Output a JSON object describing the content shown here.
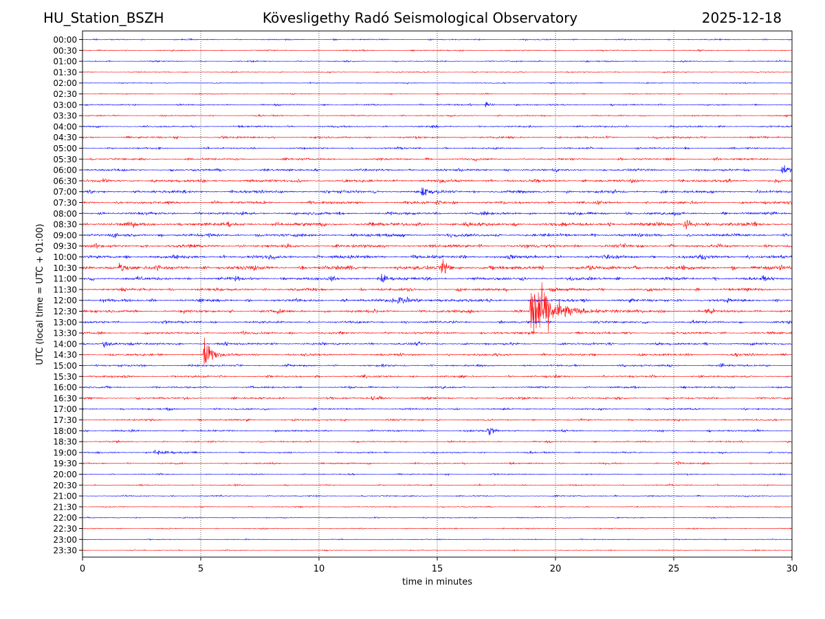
{
  "header": {
    "station": "HU_Station_BSZH",
    "observatory": "Kövesligethy Radó Seismological Observatory",
    "date": "2025-12-18"
  },
  "chart_data": {
    "type": "line",
    "title": "Kövesligethy Radó Seismological Observatory",
    "xlabel": "time in minutes",
    "ylabel": "UTC (local time = UTC + 01:00)",
    "xlim": [
      0,
      30
    ],
    "x_ticks": [
      "0",
      "5",
      "10",
      "15",
      "20",
      "25",
      "30"
    ],
    "grid": "vertical dotted lines at x ticks",
    "colors": {
      "even": "#0000ff",
      "odd": "#ff0000"
    },
    "rows": [
      "00:00",
      "00:30",
      "01:00",
      "01:30",
      "02:00",
      "02:30",
      "03:00",
      "03:30",
      "04:00",
      "04:30",
      "05:00",
      "05:30",
      "06:00",
      "06:30",
      "07:00",
      "07:30",
      "08:00",
      "08:30",
      "09:00",
      "09:30",
      "10:00",
      "10:30",
      "11:00",
      "11:30",
      "12:00",
      "12:30",
      "13:00",
      "13:30",
      "14:00",
      "14:30",
      "15:00",
      "15:30",
      "16:00",
      "16:30",
      "17:00",
      "17:30",
      "18:00",
      "18:30",
      "19:00",
      "19:30",
      "20:00",
      "20:30",
      "21:00",
      "21:30",
      "22:00",
      "22:30",
      "23:00",
      "23:30"
    ],
    "noise_level": [
      0.4,
      0.4,
      0.4,
      0.35,
      0.35,
      0.35,
      0.5,
      0.45,
      0.6,
      0.7,
      0.6,
      0.7,
      0.8,
      1.0,
      1.0,
      0.9,
      1.0,
      1.3,
      1.1,
      1.1,
      1.2,
      1.4,
      1.1,
      1.0,
      1.0,
      1.0,
      0.8,
      0.8,
      0.8,
      0.8,
      0.7,
      0.7,
      0.6,
      0.7,
      0.6,
      0.6,
      0.6,
      0.5,
      0.5,
      0.5,
      0.4,
      0.4,
      0.4,
      0.35,
      0.35,
      0.35,
      0.3,
      0.3
    ],
    "events": [
      {
        "row": "03:00",
        "t": 17.0,
        "amp": 7,
        "dur": 0.4
      },
      {
        "row": "06:00",
        "t": 29.5,
        "amp": 5,
        "dur": 1.0
      },
      {
        "row": "07:00",
        "t": 14.3,
        "amp": 6,
        "dur": 0.6
      },
      {
        "row": "07:30",
        "t": 14.9,
        "amp": 5,
        "dur": 0.4
      },
      {
        "row": "08:30",
        "t": 25.4,
        "amp": 7,
        "dur": 0.6
      },
      {
        "row": "10:30",
        "t": 1.5,
        "amp": 8,
        "dur": 0.6
      },
      {
        "row": "10:30",
        "t": 15.1,
        "amp": 9,
        "dur": 0.6
      },
      {
        "row": "11:00",
        "t": 12.6,
        "amp": 12,
        "dur": 0.3
      },
      {
        "row": "12:00",
        "t": 13.3,
        "amp": 5,
        "dur": 1.5
      },
      {
        "row": "12:30",
        "t": 18.9,
        "amp": 45,
        "dur": 1.6
      },
      {
        "row": "12:30",
        "t": 26.3,
        "amp": 5,
        "dur": 0.4
      },
      {
        "row": "14:00",
        "t": 0.8,
        "amp": 5,
        "dur": 0.8
      },
      {
        "row": "14:30",
        "t": 5.1,
        "amp": 26,
        "dur": 0.5
      },
      {
        "row": "15:00",
        "t": 26.9,
        "amp": 5,
        "dur": 0.3
      },
      {
        "row": "16:30",
        "t": 12.2,
        "amp": 4,
        "dur": 0.5
      },
      {
        "row": "18:00",
        "t": 17.1,
        "amp": 8,
        "dur": 0.4
      },
      {
        "row": "19:00",
        "t": 3.0,
        "amp": 4,
        "dur": 1.0
      },
      {
        "row": "19:30",
        "t": 25.1,
        "amp": 6,
        "dur": 0.3
      },
      {
        "row": "21:00",
        "t": 22.5,
        "amp": 5,
        "dur": 0.1
      }
    ]
  }
}
